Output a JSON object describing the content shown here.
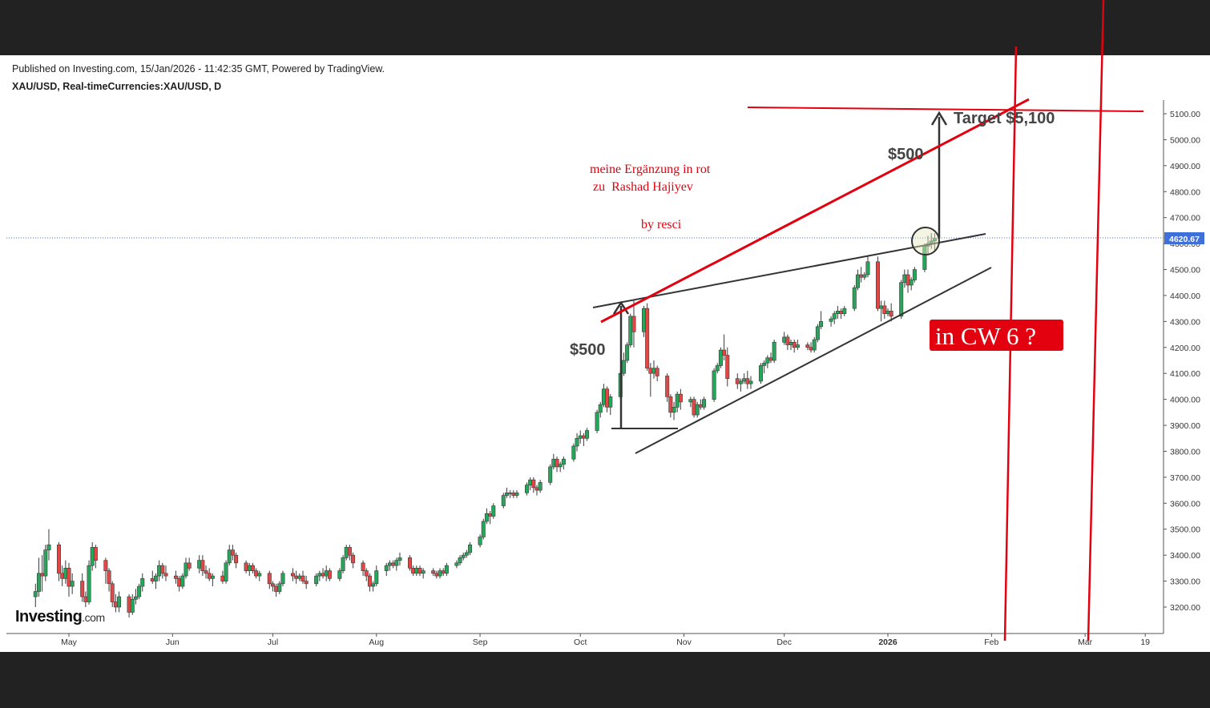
{
  "published": "Published on Investing.com, 15/Jan/2026 - 11:42:35 GMT, Powered by TradingView.",
  "symbol": "XAU/USD, Real-timeCurrencies:XAU/USD, D",
  "logo": {
    "main": "Investing",
    "suffix": ".com"
  },
  "annotations": {
    "note_line1": "meine Ergänzung in rot",
    "note_line2": "zu  Rashad Hajiyev",
    "note_by": "by resci",
    "target": "Target $5,100",
    "move_upper": "$500",
    "move_lower": "$500",
    "cw": "in CW 6 ?"
  },
  "colors": {
    "up": "#26a65b",
    "down": "#e04848",
    "red_lines": "#e3000f",
    "trend_lines": "#333333",
    "price_tag": "#3f6fd8"
  },
  "chart_data": {
    "type": "candlestick",
    "title": "XAU/USD, Real-timeCurrencies:XAU/USD, D",
    "ylim": [
      3100,
      5150
    ],
    "y_ticks": [
      "5100.00",
      "5000.00",
      "4900.00",
      "4800.00",
      "4700.00",
      "4600.00",
      "4500.00",
      "4400.00",
      "4300.00",
      "4200.00",
      "4100.00",
      "4000.00",
      "3900.00",
      "3800.00",
      "3700.00",
      "3600.00",
      "3500.00",
      "3400.00",
      "3300.00",
      "3200.00"
    ],
    "x_ticks": [
      "May",
      "Jun",
      "Jul",
      "Aug",
      "Sep",
      "Oct",
      "Nov",
      "Dec",
      "2026",
      "Feb",
      "Mar",
      "19"
    ],
    "last_price": "4620.67",
    "grid": false,
    "candles": [
      [
        "2025-04-21",
        3240,
        3290,
        3200,
        3260
      ],
      [
        "2025-04-22",
        3260,
        3390,
        3240,
        3330
      ],
      [
        "2025-04-23",
        3330,
        3400,
        3260,
        3320
      ],
      [
        "2025-04-24",
        3320,
        3440,
        3300,
        3420
      ],
      [
        "2025-04-25",
        3420,
        3500,
        3380,
        3440
      ],
      [
        "2025-04-28",
        3440,
        3450,
        3300,
        3330
      ],
      [
        "2025-04-29",
        3330,
        3360,
        3280,
        3310
      ],
      [
        "2025-04-30",
        3310,
        3380,
        3290,
        3350
      ],
      [
        "2025-05-01",
        3350,
        3370,
        3240,
        3280
      ],
      [
        "2025-05-02",
        3280,
        3330,
        3250,
        3300
      ],
      [
        "2025-05-05",
        3300,
        3330,
        3220,
        3240
      ],
      [
        "2025-05-06",
        3240,
        3260,
        3200,
        3220
      ],
      [
        "2025-05-07",
        3220,
        3380,
        3210,
        3360
      ],
      [
        "2025-05-08",
        3360,
        3450,
        3340,
        3430
      ],
      [
        "2025-05-09",
        3430,
        3440,
        3350,
        3380
      ],
      [
        "2025-05-12",
        3380,
        3390,
        3290,
        3340
      ],
      [
        "2025-05-13",
        3340,
        3350,
        3260,
        3290
      ],
      [
        "2025-05-14",
        3290,
        3300,
        3200,
        3220
      ],
      [
        "2025-05-15",
        3220,
        3250,
        3180,
        3200
      ],
      [
        "2025-05-16",
        3200,
        3260,
        3180,
        3240
      ],
      [
        "2025-05-19",
        3240,
        3250,
        3160,
        3180
      ],
      [
        "2025-05-20",
        3180,
        3250,
        3170,
        3230
      ],
      [
        "2025-05-21",
        3230,
        3270,
        3210,
        3240
      ],
      [
        "2025-05-22",
        3240,
        3290,
        3230,
        3280
      ],
      [
        "2025-05-23",
        3280,
        3330,
        3260,
        3310
      ],
      [
        "2025-05-26",
        3310,
        3340,
        3290,
        3300
      ],
      [
        "2025-05-27",
        3300,
        3330,
        3270,
        3320
      ],
      [
        "2025-05-28",
        3320,
        3380,
        3300,
        3360
      ],
      [
        "2025-05-29",
        3360,
        3370,
        3310,
        3330
      ],
      [
        "2025-05-30",
        3330,
        3360,
        3300,
        3320
      ],
      [
        "2025-06-02",
        3320,
        3340,
        3290,
        3310
      ],
      [
        "2025-06-03",
        3310,
        3320,
        3260,
        3280
      ],
      [
        "2025-06-04",
        3280,
        3330,
        3270,
        3320
      ],
      [
        "2025-06-05",
        3320,
        3390,
        3310,
        3370
      ],
      [
        "2025-06-06",
        3370,
        3390,
        3340,
        3350
      ],
      [
        "2025-06-09",
        3350,
        3400,
        3330,
        3380
      ],
      [
        "2025-06-10",
        3380,
        3400,
        3320,
        3340
      ],
      [
        "2025-06-11",
        3340,
        3360,
        3310,
        3330
      ],
      [
        "2025-06-12",
        3330,
        3350,
        3300,
        3310
      ],
      [
        "2025-06-13",
        3310,
        3330,
        3280,
        3320
      ],
      [
        "2025-06-16",
        3320,
        3340,
        3290,
        3300
      ],
      [
        "2025-06-17",
        3300,
        3380,
        3290,
        3370
      ],
      [
        "2025-06-18",
        3370,
        3440,
        3360,
        3420
      ],
      [
        "2025-06-19",
        3420,
        3440,
        3380,
        3400
      ],
      [
        "2025-06-20",
        3400,
        3410,
        3350,
        3370
      ],
      [
        "2025-06-23",
        3370,
        3380,
        3330,
        3340
      ],
      [
        "2025-06-24",
        3340,
        3370,
        3320,
        3360
      ],
      [
        "2025-06-25",
        3360,
        3370,
        3330,
        3340
      ],
      [
        "2025-06-26",
        3340,
        3350,
        3310,
        3320
      ],
      [
        "2025-06-27",
        3320,
        3340,
        3300,
        3330
      ],
      [
        "2025-06-30",
        3330,
        3340,
        3270,
        3290
      ],
      [
        "2025-07-01",
        3290,
        3300,
        3260,
        3280
      ],
      [
        "2025-07-02",
        3280,
        3290,
        3240,
        3260
      ],
      [
        "2025-07-03",
        3260,
        3300,
        3250,
        3290
      ],
      [
        "2025-07-04",
        3290,
        3340,
        3280,
        3330
      ],
      [
        "2025-07-07",
        3330,
        3350,
        3300,
        3320
      ],
      [
        "2025-07-08",
        3320,
        3340,
        3290,
        3310
      ],
      [
        "2025-07-09",
        3310,
        3330,
        3300,
        3320
      ],
      [
        "2025-07-10",
        3320,
        3340,
        3290,
        3300
      ],
      [
        "2025-07-11",
        3300,
        3320,
        3270,
        3290
      ],
      [
        "2025-07-14",
        3290,
        3330,
        3280,
        3320
      ],
      [
        "2025-07-15",
        3320,
        3340,
        3300,
        3330
      ],
      [
        "2025-07-16",
        3330,
        3350,
        3310,
        3320
      ],
      [
        "2025-07-17",
        3320,
        3360,
        3300,
        3340
      ],
      [
        "2025-07-18",
        3340,
        3350,
        3300,
        3310
      ],
      [
        "2025-07-21",
        3310,
        3350,
        3300,
        3340
      ],
      [
        "2025-07-22",
        3340,
        3400,
        3330,
        3390
      ],
      [
        "2025-07-23",
        3390,
        3440,
        3380,
        3430
      ],
      [
        "2025-07-24",
        3430,
        3440,
        3380,
        3400
      ],
      [
        "2025-07-25",
        3400,
        3410,
        3350,
        3370
      ],
      [
        "2025-07-28",
        3370,
        3380,
        3320,
        3340
      ],
      [
        "2025-07-29",
        3340,
        3350,
        3300,
        3320
      ],
      [
        "2025-07-30",
        3320,
        3330,
        3260,
        3280
      ],
      [
        "2025-07-31",
        3280,
        3300,
        3260,
        3290
      ],
      [
        "2025-08-01",
        3290,
        3360,
        3280,
        3340
      ],
      [
        "2025-08-04",
        3340,
        3370,
        3320,
        3360
      ],
      [
        "2025-08-05",
        3360,
        3380,
        3340,
        3370
      ],
      [
        "2025-08-06",
        3370,
        3380,
        3350,
        3360
      ],
      [
        "2025-08-07",
        3360,
        3390,
        3340,
        3380
      ],
      [
        "2025-08-08",
        3380,
        3410,
        3360,
        3390
      ],
      [
        "2025-08-11",
        3390,
        3400,
        3340,
        3350
      ],
      [
        "2025-08-12",
        3350,
        3360,
        3320,
        3330
      ],
      [
        "2025-08-13",
        3330,
        3360,
        3320,
        3350
      ],
      [
        "2025-08-14",
        3350,
        3360,
        3320,
        3330
      ],
      [
        "2025-08-15",
        3330,
        3350,
        3310,
        3340
      ],
      [
        "2025-08-18",
        3340,
        3350,
        3320,
        3330
      ],
      [
        "2025-08-19",
        3330,
        3340,
        3310,
        3320
      ],
      [
        "2025-08-20",
        3320,
        3350,
        3310,
        3340
      ],
      [
        "2025-08-21",
        3340,
        3350,
        3320,
        3330
      ],
      [
        "2025-08-22",
        3330,
        3370,
        3320,
        3360
      ],
      [
        "2025-08-25",
        3360,
        3380,
        3350,
        3370
      ],
      [
        "2025-08-26",
        3370,
        3400,
        3360,
        3390
      ],
      [
        "2025-08-27",
        3390,
        3410,
        3380,
        3400
      ],
      [
        "2025-08-28",
        3400,
        3420,
        3390,
        3410
      ],
      [
        "2025-08-29",
        3410,
        3450,
        3400,
        3440
      ],
      [
        "2025-09-01",
        3440,
        3480,
        3430,
        3470
      ],
      [
        "2025-09-02",
        3470,
        3540,
        3460,
        3530
      ],
      [
        "2025-09-03",
        3530,
        3580,
        3520,
        3560
      ],
      [
        "2025-09-04",
        3560,
        3570,
        3520,
        3550
      ],
      [
        "2025-09-05",
        3550,
        3600,
        3540,
        3590
      ],
      [
        "2025-09-08",
        3590,
        3640,
        3580,
        3630
      ],
      [
        "2025-09-09",
        3630,
        3660,
        3620,
        3640
      ],
      [
        "2025-09-10",
        3640,
        3650,
        3620,
        3640
      ],
      [
        "2025-09-11",
        3640,
        3650,
        3620,
        3630
      ],
      [
        "2025-09-12",
        3630,
        3650,
        3620,
        3640
      ],
      [
        "2025-09-15",
        3640,
        3680,
        3630,
        3670
      ],
      [
        "2025-09-16",
        3670,
        3700,
        3650,
        3690
      ],
      [
        "2025-09-17",
        3690,
        3700,
        3640,
        3660
      ],
      [
        "2025-09-18",
        3660,
        3670,
        3630,
        3650
      ],
      [
        "2025-09-19",
        3650,
        3690,
        3640,
        3680
      ],
      [
        "2025-09-22",
        3680,
        3750,
        3670,
        3740
      ],
      [
        "2025-09-23",
        3740,
        3790,
        3730,
        3770
      ],
      [
        "2025-09-24",
        3770,
        3780,
        3720,
        3740
      ],
      [
        "2025-09-25",
        3740,
        3760,
        3720,
        3750
      ],
      [
        "2025-09-26",
        3750,
        3780,
        3730,
        3770
      ],
      [
        "2025-09-29",
        3770,
        3830,
        3760,
        3820
      ],
      [
        "2025-09-30",
        3820,
        3870,
        3800,
        3850
      ],
      [
        "2025-10-01",
        3850,
        3880,
        3830,
        3860
      ],
      [
        "2025-10-02",
        3860,
        3870,
        3820,
        3850
      ],
      [
        "2025-10-03",
        3850,
        3890,
        3840,
        3880
      ],
      [
        "2025-10-06",
        3880,
        3960,
        3870,
        3950
      ],
      [
        "2025-10-07",
        3950,
        3990,
        3930,
        3980
      ],
      [
        "2025-10-08",
        3980,
        4060,
        3970,
        4040
      ],
      [
        "2025-10-09",
        4040,
        4050,
        3950,
        3970
      ],
      [
        "2025-10-10",
        3970,
        4020,
        3940,
        4010
      ],
      [
        "2025-10-13",
        4010,
        4110,
        4000,
        4100
      ],
      [
        "2025-10-14",
        4100,
        4180,
        4090,
        4150
      ],
      [
        "2025-10-15",
        4150,
        4220,
        4140,
        4210
      ],
      [
        "2025-10-16",
        4210,
        4330,
        4200,
        4320
      ],
      [
        "2025-10-17",
        4320,
        4380,
        4200,
        4260
      ],
      [
        "2025-10-20",
        4260,
        4360,
        4240,
        4350
      ],
      [
        "2025-10-21",
        4350,
        4370,
        4110,
        4120
      ],
      [
        "2025-10-22",
        4120,
        4140,
        4010,
        4100
      ],
      [
        "2025-10-23",
        4100,
        4150,
        4080,
        4120
      ],
      [
        "2025-10-24",
        4120,
        4130,
        4070,
        4090
      ],
      [
        "2025-10-27",
        4090,
        4100,
        3990,
        4010
      ],
      [
        "2025-10-28",
        4010,
        4020,
        3930,
        3950
      ],
      [
        "2025-10-29",
        3950,
        3990,
        3920,
        3970
      ],
      [
        "2025-10-30",
        3970,
        4030,
        3950,
        4020
      ],
      [
        "2025-10-31",
        4020,
        4040,
        3960,
        3990
      ],
      [
        "2025-11-03",
        3990,
        4010,
        3970,
        4000
      ],
      [
        "2025-11-04",
        4000,
        4010,
        3930,
        3940
      ],
      [
        "2025-11-05",
        3940,
        3990,
        3930,
        3980
      ],
      [
        "2025-11-06",
        3980,
        4000,
        3960,
        3970
      ],
      [
        "2025-11-07",
        3970,
        4010,
        3960,
        4000
      ],
      [
        "2025-11-10",
        4000,
        4120,
        3990,
        4110
      ],
      [
        "2025-11-11",
        4110,
        4140,
        4100,
        4130
      ],
      [
        "2025-11-12",
        4130,
        4200,
        4120,
        4190
      ],
      [
        "2025-11-13",
        4190,
        4250,
        4150,
        4170
      ],
      [
        "2025-11-14",
        4170,
        4200,
        4050,
        4080
      ],
      [
        "2025-11-17",
        4080,
        4100,
        4040,
        4060
      ],
      [
        "2025-11-18",
        4060,
        4080,
        4030,
        4070
      ],
      [
        "2025-11-19",
        4070,
        4100,
        4060,
        4080
      ],
      [
        "2025-11-20",
        4080,
        4110,
        4040,
        4060
      ],
      [
        "2025-11-21",
        4060,
        4090,
        4040,
        4070
      ],
      [
        "2025-11-24",
        4070,
        4140,
        4060,
        4130
      ],
      [
        "2025-11-25",
        4130,
        4150,
        4100,
        4140
      ],
      [
        "2025-11-26",
        4140,
        4170,
        4120,
        4160
      ],
      [
        "2025-11-27",
        4160,
        4180,
        4140,
        4150
      ],
      [
        "2025-11-28",
        4150,
        4230,
        4140,
        4220
      ],
      [
        "2025-12-01",
        4220,
        4260,
        4210,
        4240
      ],
      [
        "2025-12-02",
        4240,
        4250,
        4190,
        4210
      ],
      [
        "2025-12-03",
        4210,
        4230,
        4190,
        4220
      ],
      [
        "2025-12-04",
        4220,
        4230,
        4180,
        4200
      ],
      [
        "2025-12-05",
        4200,
        4230,
        4190,
        4210
      ],
      [
        "2025-12-08",
        4210,
        4220,
        4190,
        4200
      ],
      [
        "2025-12-09",
        4200,
        4220,
        4180,
        4190
      ],
      [
        "2025-12-10",
        4190,
        4240,
        4180,
        4230
      ],
      [
        "2025-12-11",
        4230,
        4290,
        4220,
        4280
      ],
      [
        "2025-12-12",
        4280,
        4340,
        4270,
        4300
      ],
      [
        "2025-12-15",
        4300,
        4320,
        4280,
        4310
      ],
      [
        "2025-12-16",
        4310,
        4340,
        4290,
        4330
      ],
      [
        "2025-12-17",
        4330,
        4360,
        4310,
        4340
      ],
      [
        "2025-12-18",
        4340,
        4350,
        4310,
        4330
      ],
      [
        "2025-12-19",
        4330,
        4360,
        4320,
        4350
      ],
      [
        "2025-12-22",
        4350,
        4440,
        4340,
        4430
      ],
      [
        "2025-12-23",
        4430,
        4500,
        4420,
        4480
      ],
      [
        "2025-12-24",
        4480,
        4510,
        4450,
        4470
      ],
      [
        "2025-12-25",
        4470,
        4490,
        4460,
        4480
      ],
      [
        "2025-12-26",
        4480,
        4550,
        4470,
        4530
      ],
      [
        "2025-12-29",
        4530,
        4550,
        4340,
        4350
      ],
      [
        "2025-12-30",
        4350,
        4380,
        4300,
        4360
      ],
      [
        "2025-12-31",
        4360,
        4380,
        4310,
        4330
      ],
      [
        "2026-01-01",
        4330,
        4350,
        4320,
        4340
      ],
      [
        "2026-01-02",
        4340,
        4370,
        4300,
        4320
      ],
      [
        "2026-01-05",
        4320,
        4460,
        4310,
        4450
      ],
      [
        "2026-01-06",
        4450,
        4500,
        4430,
        4480
      ],
      [
        "2026-01-07",
        4480,
        4500,
        4410,
        4440
      ],
      [
        "2026-01-08",
        4440,
        4470,
        4420,
        4460
      ],
      [
        "2026-01-09",
        4460,
        4510,
        4450,
        4500
      ],
      [
        "2026-01-12",
        4500,
        4600,
        4490,
        4590
      ],
      [
        "2026-01-13",
        4590,
        4630,
        4560,
        4600
      ],
      [
        "2026-01-14",
        4600,
        4640,
        4580,
        4610
      ],
      [
        "2026-01-15",
        4610,
        4640,
        4570,
        4620
      ]
    ]
  }
}
